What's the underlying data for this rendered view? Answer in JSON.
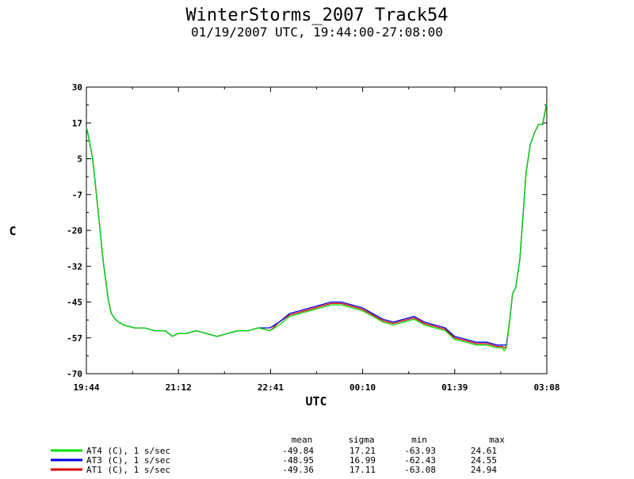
{
  "chart_data": {
    "type": "line",
    "title": "WinterStorms_2007 Track54",
    "subtitle": "01/19/2007 UTC, 19:44:00-27:08:00",
    "xlabel": "UTC",
    "ylabel": "C",
    "xlim": [
      "19:44",
      "03:08"
    ],
    "ylim": [
      -70,
      30
    ],
    "x_ticks": [
      "19:44",
      "21:12",
      "22:41",
      "00:10",
      "01:39",
      "03:08"
    ],
    "y_ticks": [
      "30",
      "17",
      "5",
      "-7",
      "-20",
      "-32",
      "-45",
      "-57",
      "-70"
    ],
    "grid": false,
    "x": [
      "19:44",
      "19:46",
      "19:50",
      "19:55",
      "20:00",
      "20:05",
      "20:08",
      "20:12",
      "20:15",
      "20:20",
      "20:30",
      "20:40",
      "20:50",
      "21:00",
      "21:07",
      "21:12",
      "21:20",
      "21:30",
      "21:40",
      "21:50",
      "22:00",
      "22:10",
      "22:20",
      "22:30",
      "22:41",
      "22:50",
      "23:00",
      "23:10",
      "23:20",
      "23:30",
      "23:40",
      "23:50",
      "00:00",
      "00:10",
      "00:20",
      "00:30",
      "00:40",
      "00:50",
      "01:00",
      "01:10",
      "01:20",
      "01:30",
      "01:39",
      "01:50",
      "02:00",
      "02:10",
      "02:20",
      "02:25",
      "02:27",
      "02:29",
      "02:32",
      "02:35",
      "02:38",
      "02:42",
      "02:45",
      "02:48",
      "02:52",
      "02:56",
      "03:00",
      "03:04",
      "03:08"
    ],
    "series": [
      {
        "name": "AT4 (C), 1 s/sec",
        "color": "#00e000",
        "values": [
          16,
          13,
          5,
          -12,
          -30,
          -44,
          -49,
          -51,
          -52,
          -53,
          -54,
          -54,
          -55,
          -55,
          -57,
          -56,
          -56,
          -55,
          -56,
          -57,
          -56,
          -55,
          -55,
          -54,
          -55,
          -53,
          -50,
          -49,
          -48,
          -47,
          -46,
          -46,
          -47,
          -48,
          -50,
          -52,
          -53,
          -52,
          -51,
          -53,
          -54,
          -55,
          -58,
          -59,
          -60,
          -60,
          -61,
          -61,
          -62,
          -61,
          -52,
          -42,
          -40,
          -30,
          -15,
          0,
          10,
          14,
          17,
          17,
          24.6
        ]
      },
      {
        "name": "AT3 (C), 1 s/sec",
        "color": "#0000e0",
        "values": [
          16,
          13,
          5,
          -12,
          -30,
          -44,
          -49,
          -51,
          -52,
          -53,
          -54,
          -54,
          -55,
          -55,
          -57,
          -56,
          -56,
          -55,
          -56,
          -57,
          -56,
          -55,
          -55,
          -54,
          -54,
          -52,
          -49,
          -48,
          -47,
          -46,
          -45,
          -45,
          -46,
          -47,
          -49,
          -51,
          -52,
          -51,
          -50,
          -52,
          -53,
          -54,
          -57,
          -58,
          -59,
          -59,
          -60,
          -60,
          -60,
          -60,
          -52,
          -42,
          -40,
          -30,
          -15,
          0,
          10,
          14,
          17,
          17,
          24.5
        ]
      },
      {
        "name": "AT1 (C), 1 s/sec",
        "color": "#e00000",
        "values": [
          16,
          13,
          5,
          -12,
          -30,
          -44,
          -49,
          -51,
          -52,
          -53,
          -54,
          -54,
          -55,
          -55,
          -57,
          -56,
          -56,
          -55,
          -56,
          -57,
          -56,
          -55,
          -55,
          -54,
          -55,
          -52,
          -49.5,
          -48.5,
          -47.5,
          -46.5,
          -45.5,
          -45.5,
          -46.5,
          -47.5,
          -49.5,
          -51.5,
          -52.5,
          -51.5,
          -50.5,
          -52.5,
          -53.5,
          -54.5,
          -57.5,
          -58.5,
          -59.5,
          -59.5,
          -60.5,
          -60.5,
          -61,
          -60.5,
          -52,
          -42,
          -40,
          -30,
          -15,
          0,
          10,
          14,
          17,
          17,
          24.9
        ]
      }
    ],
    "stats": {
      "headers": [
        "mean",
        "sigma",
        "min",
        "max"
      ],
      "rows": [
        {
          "label": "AT4 (C), 1 s/sec",
          "color": "#00e000",
          "values": [
            "-49.84",
            "17.21",
            "-63.93",
            "24.61"
          ]
        },
        {
          "label": "AT3 (C), 1 s/sec",
          "color": "#0000e0",
          "values": [
            "-48.95",
            "16.99",
            "-62.43",
            "24.55"
          ]
        },
        {
          "label": "AT1 (C), 1 s/sec",
          "color": "#e00000",
          "values": [
            "-49.36",
            "17.11",
            "-63.08",
            "24.94"
          ]
        }
      ]
    }
  }
}
